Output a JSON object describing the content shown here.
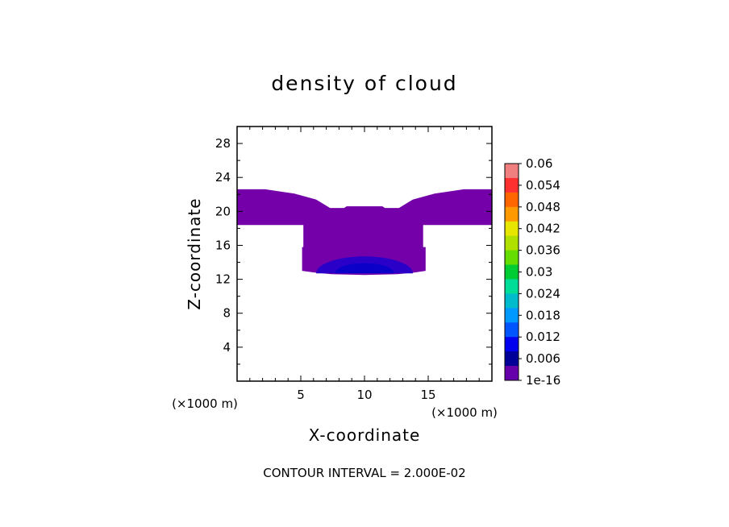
{
  "chart_data": {
    "type": "heatmap",
    "title": "density of cloud",
    "xlabel": "X-coordinate",
    "ylabel": "Z-coordinate",
    "x_unit": "(×1000 m)",
    "x_unit_left": "(×1000 m)",
    "xlim": [
      0,
      20
    ],
    "ylim": [
      0,
      30
    ],
    "xticks": [
      5,
      10,
      15
    ],
    "yticks": [
      4,
      8,
      12,
      16,
      20,
      24,
      28
    ],
    "footer": "CONTOUR INTERVAL = 2.000E-02",
    "colorbar": {
      "labels": [
        "0.06",
        "0.054",
        "0.048",
        "0.042",
        "0.036",
        "0.03",
        "0.024",
        "0.018",
        "0.012",
        "0.006",
        "1e-16"
      ],
      "levels": [
        0.06,
        0.054,
        0.048,
        0.042,
        0.036,
        0.03,
        0.024,
        0.018,
        0.012,
        0.006,
        1e-16
      ],
      "colors_top_to_bottom": [
        "#f08080",
        "#ff3030",
        "#ff6600",
        "#ff9900",
        "#e6e600",
        "#b0e000",
        "#66dd00",
        "#00cc33",
        "#00dd99",
        "#00bbcc",
        "#0099ff",
        "#0055ff",
        "#0000ee",
        "#000099",
        "#6600aa"
      ]
    },
    "regions": [
      {
        "level": "1e-16 to 0.006",
        "color": "#7300a8",
        "outline": [
          [
            0,
            22.6
          ],
          [
            2.2,
            22.6
          ],
          [
            4.5,
            22.1
          ],
          [
            6.2,
            21.4
          ],
          [
            7.3,
            20.4
          ],
          [
            8.4,
            20.4
          ],
          [
            8.6,
            20.6
          ],
          [
            11.4,
            20.6
          ],
          [
            11.6,
            20.4
          ],
          [
            12.7,
            20.4
          ],
          [
            13.8,
            21.4
          ],
          [
            15.5,
            22.1
          ],
          [
            17.8,
            22.6
          ],
          [
            20,
            22.6
          ],
          [
            20,
            18.4
          ],
          [
            14.6,
            18.4
          ],
          [
            14.6,
            15.8
          ],
          [
            14.8,
            15.8
          ],
          [
            14.8,
            13.0
          ],
          [
            13.9,
            12.8
          ],
          [
            12.6,
            12.6
          ],
          [
            10.0,
            12.5
          ],
          [
            7.4,
            12.6
          ],
          [
            6.1,
            12.8
          ],
          [
            5.1,
            13.0
          ],
          [
            5.1,
            15.8
          ],
          [
            5.2,
            15.8
          ],
          [
            5.2,
            18.4
          ],
          [
            0,
            18.4
          ]
        ]
      },
      {
        "level": "0.006 to 0.012",
        "color": "#2a00c8",
        "ellipse": {
          "cx": 10.0,
          "cy": 12.7,
          "rx": 3.8,
          "ry": 2.0
        }
      },
      {
        "level": "0.012 to 0.018",
        "color": "#0a00c8",
        "ellipse": {
          "cx": 10.0,
          "cy": 12.7,
          "rx": 2.3,
          "ry": 1.2
        }
      }
    ]
  }
}
